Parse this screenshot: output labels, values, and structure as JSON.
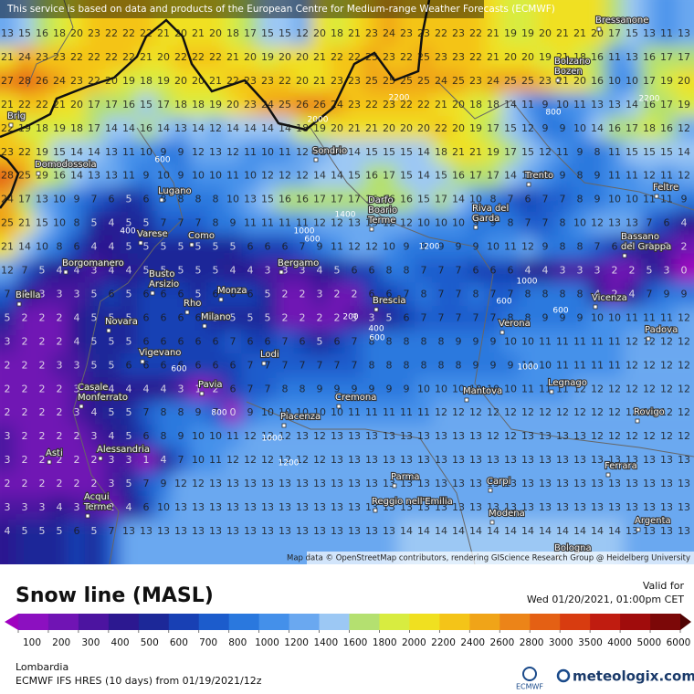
{
  "header": {
    "notice": "This service is based on data and products of the European Centre for Medium-range Weather Forecasts (ECMWF)"
  },
  "map": {
    "grid": [
      [
        13,
        15,
        16,
        18,
        20,
        23,
        22,
        22,
        22,
        21,
        20,
        21,
        20,
        18,
        17,
        15,
        15,
        12,
        20,
        18,
        21,
        23,
        24,
        23,
        23,
        22,
        23,
        22,
        21,
        19,
        19,
        20,
        21,
        21,
        20,
        17,
        15,
        13,
        11,
        13
      ],
      [
        21,
        24,
        23,
        23,
        22,
        22,
        22,
        22,
        21,
        20,
        22,
        22,
        22,
        21,
        20,
        19,
        20,
        20,
        21,
        22,
        22,
        25,
        23,
        22,
        25,
        23,
        23,
        22,
        21,
        20,
        20,
        19,
        21,
        18,
        16,
        11,
        13,
        16,
        17,
        17
      ],
      [
        27,
        28,
        26,
        24,
        23,
        22,
        20,
        19,
        18,
        19,
        20,
        20,
        21,
        22,
        23,
        23,
        22,
        20,
        21,
        23,
        23,
        25,
        25,
        25,
        25,
        24,
        25,
        23,
        24,
        25,
        25,
        23,
        21,
        20,
        16,
        10,
        10,
        17,
        19,
        20
      ],
      [
        21,
        22,
        22,
        21,
        20,
        17,
        17,
        16,
        15,
        17,
        18,
        18,
        19,
        20,
        23,
        24,
        25,
        26,
        26,
        24,
        23,
        22,
        23,
        22,
        22,
        21,
        20,
        18,
        18,
        14,
        11,
        9,
        10,
        11,
        13,
        13,
        14,
        16,
        17,
        19
      ],
      [
        22,
        19,
        18,
        19,
        18,
        17,
        14,
        14,
        16,
        14,
        13,
        14,
        12,
        14,
        14,
        14,
        14,
        18,
        19,
        20,
        21,
        21,
        20,
        20,
        20,
        22,
        20,
        19,
        17,
        15,
        12,
        9,
        9,
        10,
        14,
        16,
        17,
        18,
        16,
        12
      ],
      [
        23,
        22,
        19,
        15,
        14,
        14,
        13,
        11,
        10,
        9,
        9,
        12,
        13,
        12,
        11,
        10,
        11,
        12,
        12,
        14,
        14,
        15,
        15,
        15,
        14,
        18,
        21,
        21,
        19,
        17,
        15,
        12,
        11,
        9,
        8,
        11,
        15,
        15,
        15,
        14
      ],
      [
        28,
        25,
        19,
        16,
        14,
        13,
        13,
        11,
        9,
        10,
        9,
        10,
        10,
        11,
        10,
        12,
        12,
        12,
        14,
        14,
        15,
        16,
        17,
        15,
        14,
        15,
        16,
        17,
        17,
        14,
        12,
        10,
        9,
        8,
        9,
        11,
        11,
        12,
        11,
        12
      ],
      [
        24,
        17,
        13,
        10,
        9,
        7,
        6,
        5,
        6,
        8,
        8,
        8,
        8,
        10,
        13,
        15,
        16,
        16,
        17,
        17,
        17,
        16,
        16,
        16,
        15,
        17,
        14,
        10,
        8,
        7,
        6,
        7,
        7,
        8,
        9,
        10,
        10,
        11,
        11,
        9
      ],
      [
        25,
        21,
        15,
        10,
        8,
        5,
        4,
        5,
        5,
        7,
        7,
        7,
        8,
        9,
        11,
        11,
        11,
        11,
        12,
        12,
        13,
        13,
        12,
        12,
        10,
        10,
        10,
        9,
        9,
        8,
        7,
        7,
        8,
        10,
        12,
        13,
        13,
        7,
        6,
        4
      ],
      [
        21,
        14,
        10,
        8,
        6,
        4,
        4,
        5,
        5,
        5,
        5,
        5,
        5,
        5,
        6,
        6,
        6,
        7,
        9,
        11,
        12,
        12,
        10,
        9,
        9,
        9,
        9,
        9,
        10,
        11,
        12,
        9,
        8,
        8,
        7,
        6,
        5,
        4,
        3,
        2
      ],
      [
        12,
        7,
        5,
        4,
        4,
        3,
        4,
        4,
        5,
        5,
        5,
        5,
        5,
        4,
        4,
        3,
        3,
        3,
        4,
        5,
        6,
        6,
        8,
        8,
        7,
        7,
        7,
        6,
        6,
        6,
        4,
        4,
        3,
        3,
        3,
        2,
        2,
        5,
        3,
        0
      ],
      [
        7,
        4,
        3,
        3,
        3,
        5,
        6,
        5,
        6,
        6,
        6,
        5,
        6,
        6,
        6,
        5,
        2,
        2,
        3,
        2,
        2,
        6,
        6,
        7,
        8,
        7,
        7,
        8,
        7,
        7,
        8,
        8,
        8,
        8,
        4,
        2,
        4,
        7,
        9,
        9
      ],
      [
        5,
        2,
        2,
        2,
        4,
        5,
        5,
        5,
        6,
        6,
        6,
        6,
        5,
        5,
        5,
        5,
        2,
        2,
        2,
        2,
        3,
        3,
        5,
        6,
        7,
        7,
        7,
        7,
        7,
        8,
        8,
        9,
        9,
        9,
        10,
        10,
        11,
        11,
        11,
        12
      ],
      [
        3,
        2,
        2,
        2,
        4,
        5,
        5,
        5,
        6,
        6,
        6,
        6,
        6,
        7,
        6,
        6,
        7,
        6,
        5,
        6,
        7,
        8,
        8,
        8,
        8,
        8,
        9,
        9,
        9,
        10,
        10,
        11,
        11,
        11,
        11,
        11,
        12,
        12,
        12,
        12
      ],
      [
        2,
        2,
        2,
        3,
        3,
        5,
        5,
        6,
        6,
        6,
        6,
        6,
        6,
        6,
        7,
        7,
        7,
        7,
        7,
        7,
        7,
        8,
        8,
        8,
        8,
        8,
        8,
        9,
        9,
        9,
        10,
        10,
        11,
        11,
        11,
        11,
        12,
        12,
        12,
        12
      ],
      [
        2,
        2,
        2,
        2,
        3,
        4,
        4,
        4,
        4,
        4,
        3,
        1,
        2,
        6,
        7,
        7,
        8,
        8,
        9,
        9,
        9,
        9,
        9,
        9,
        10,
        10,
        10,
        10,
        10,
        10,
        11,
        11,
        11,
        12,
        12,
        12,
        12,
        12,
        12,
        12
      ],
      [
        2,
        2,
        2,
        2,
        3,
        4,
        5,
        5,
        7,
        8,
        8,
        9,
        7,
        0,
        9,
        10,
        10,
        10,
        10,
        10,
        11,
        11,
        11,
        11,
        11,
        12,
        12,
        12,
        12,
        12,
        12,
        12,
        12,
        12,
        12,
        12,
        12,
        12,
        12,
        12
      ],
      [
        3,
        2,
        2,
        2,
        2,
        3,
        4,
        5,
        6,
        8,
        9,
        10,
        10,
        11,
        12,
        12,
        12,
        13,
        12,
        13,
        13,
        13,
        13,
        13,
        13,
        13,
        13,
        13,
        12,
        12,
        13,
        13,
        13,
        13,
        12,
        12,
        12,
        12,
        12,
        12
      ],
      [
        3,
        2,
        2,
        2,
        2,
        2,
        3,
        3,
        1,
        4,
        7,
        10,
        11,
        12,
        12,
        12,
        12,
        12,
        12,
        13,
        13,
        13,
        13,
        13,
        13,
        13,
        13,
        13,
        13,
        13,
        13,
        13,
        13,
        13,
        13,
        13,
        13,
        13,
        13,
        13
      ],
      [
        2,
        2,
        2,
        2,
        2,
        2,
        3,
        5,
        7,
        9,
        12,
        12,
        13,
        13,
        13,
        13,
        13,
        13,
        13,
        13,
        13,
        13,
        13,
        13,
        13,
        13,
        13,
        13,
        13,
        13,
        13,
        13,
        13,
        13,
        13,
        13,
        13,
        13,
        13,
        13
      ],
      [
        3,
        3,
        3,
        4,
        3,
        3,
        2,
        4,
        6,
        10,
        13,
        13,
        13,
        13,
        13,
        13,
        13,
        13,
        13,
        13,
        13,
        13,
        13,
        13,
        13,
        13,
        13,
        13,
        13,
        13,
        13,
        13,
        13,
        13,
        13,
        13,
        13,
        13,
        13,
        13
      ],
      [
        4,
        5,
        5,
        5,
        6,
        5,
        7,
        13,
        13,
        13,
        13,
        13,
        13,
        13,
        13,
        13,
        13,
        13,
        13,
        13,
        13,
        13,
        13,
        14,
        14,
        14,
        14,
        14,
        14,
        14,
        14,
        14,
        14,
        14,
        14,
        14,
        13,
        13,
        13,
        13
      ]
    ],
    "cities": [
      {
        "lines": [
          "Brig"
        ]
      },
      {
        "lines": [
          "Domodossola"
        ]
      },
      {
        "lines": [
          "Lugano"
        ]
      },
      {
        "lines": [
          "Varese"
        ]
      },
      {
        "lines": [
          "Como"
        ]
      },
      {
        "lines": [
          "Borgomanero"
        ]
      },
      {
        "lines": [
          "Busto",
          "Arsizio"
        ]
      },
      {
        "lines": [
          "Bergamo"
        ]
      },
      {
        "lines": [
          "Biella"
        ]
      },
      {
        "lines": [
          "Rho"
        ]
      },
      {
        "lines": [
          "Monza"
        ]
      },
      {
        "lines": [
          "Brescia"
        ]
      },
      {
        "lines": [
          "Novara"
        ]
      },
      {
        "lines": [
          "Milano"
        ]
      },
      {
        "lines": [
          "Vigevano"
        ]
      },
      {
        "lines": [
          "Lodi"
        ]
      },
      {
        "lines": [
          "Verona"
        ]
      },
      {
        "lines": [
          "Pavia"
        ]
      },
      {
        "lines": [
          "Casale",
          "Monferrato"
        ]
      },
      {
        "lines": [
          "Cremona"
        ]
      },
      {
        "lines": [
          "Mantova"
        ]
      },
      {
        "lines": [
          "Piacenza"
        ]
      },
      {
        "lines": [
          "Alessandria"
        ]
      },
      {
        "lines": [
          "Asti"
        ]
      },
      {
        "lines": [
          "Parma"
        ]
      },
      {
        "lines": [
          "Reggio nell'Emilia"
        ]
      },
      {
        "lines": [
          "Carpi"
        ]
      },
      {
        "lines": [
          "Modena"
        ]
      },
      {
        "lines": [
          "Acqui",
          "Terme"
        ]
      },
      {
        "lines": [
          "Bolzano",
          "Bozen"
        ]
      },
      {
        "lines": [
          "Bressanone"
        ]
      },
      {
        "lines": [
          "Trento"
        ]
      },
      {
        "lines": [
          "Riva del",
          "Garda"
        ]
      },
      {
        "lines": [
          "Darfo",
          "Boario",
          "Terme"
        ]
      },
      {
        "lines": [
          "Sondrio"
        ]
      },
      {
        "lines": [
          "Feltre"
        ]
      },
      {
        "lines": [
          "Bassano",
          "del Grappa"
        ]
      },
      {
        "lines": [
          "Vicenza"
        ]
      },
      {
        "lines": [
          "Padova"
        ]
      },
      {
        "lines": [
          "Legnago"
        ]
      },
      {
        "lines": [
          "Rovigo"
        ]
      },
      {
        "lines": [
          "Ferrara"
        ]
      },
      {
        "lines": [
          "Argenta"
        ]
      },
      {
        "lines": [
          "Bologna"
        ]
      }
    ],
    "contour_labels": [
      600,
      1400,
      1000,
      600,
      400,
      1200,
      1000,
      600,
      200,
      400,
      600,
      600,
      800,
      1000,
      1200,
      600,
      800,
      2200,
      2000,
      1000,
      2200
    ],
    "attribution": "Map data © OpenStreetMap contributors, rendering GIScience Research Group @ Heidelberg University"
  },
  "legend": {
    "title": "Snow line (MASL)",
    "valid_label": "Valid for",
    "valid_time": "Wed 01/20/2021, 01:00pm CET",
    "ticks": [
      100,
      200,
      300,
      400,
      500,
      600,
      700,
      800,
      1000,
      1200,
      1400,
      1600,
      1800,
      2000,
      2200,
      2400,
      2600,
      2800,
      3000,
      3500,
      4000,
      5000,
      6000
    ],
    "colors": [
      "#a000c0",
      "#8c10c0",
      "#7014b4",
      "#4c14a0",
      "#2c1890",
      "#1c2898",
      "#1840b4",
      "#1c5ccc",
      "#2a78de",
      "#4490ea",
      "#6aa8f0",
      "#9cc8f4",
      "#b4e070",
      "#d8ec40",
      "#f0e020",
      "#f4c418",
      "#f0a418",
      "#ec8418",
      "#e46014",
      "#d83c10",
      "#c01c10",
      "#a00c0c",
      "#7c0808",
      "#500404"
    ]
  },
  "footer": {
    "region": "Lombardia",
    "model": "ECMWF IFS HRES (10 days) from 01/19/2021/12z",
    "ecmwf_logo": "ECMWF",
    "brand": "meteologix.com"
  }
}
